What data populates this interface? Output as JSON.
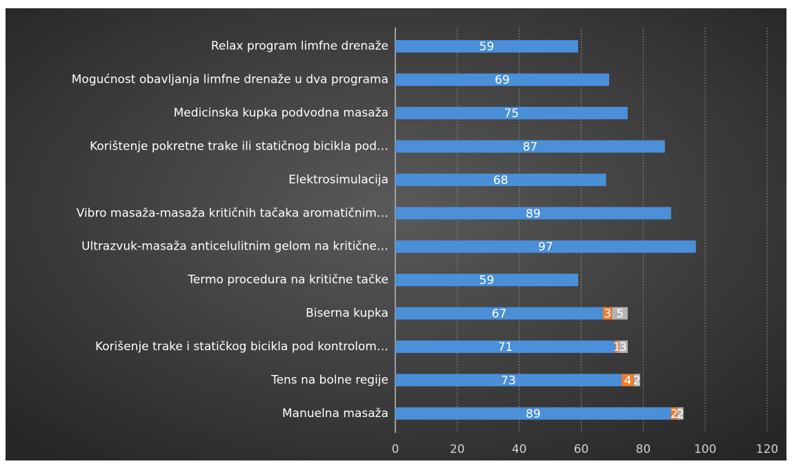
{
  "chart_data": {
    "type": "stacked_barh",
    "categories": [
      "Relax program limfne drenaže",
      "Mogućnost obavljanja limfne drenaže u dva programa",
      "Medicinska kupka podvodna masaža",
      "Korištenje pokretne trake ili statičnog bicikla pod…",
      "Elektrosimulacija",
      "Vibro masaža-masaža kritičnih tačaka aromatičnim…",
      "Ultrazvuk-masaža anticelulitnim gelom na kritične…",
      "Termo procedura na kritične tačke",
      "Biserna kupka",
      "Korišenje trake i statičkog bicikla pod kontrolom…",
      "Tens na bolne regije",
      "Manuelna masaža"
    ],
    "series": [
      {
        "color": "#4a8fd8",
        "values": [
          59,
          69,
          75,
          87,
          68,
          89,
          97,
          59,
          67,
          71,
          73,
          89
        ]
      },
      {
        "color": "#ed7d31",
        "values": [
          null,
          null,
          null,
          null,
          null,
          null,
          null,
          null,
          3,
          1,
          4,
          2
        ]
      },
      {
        "color": "#b4b4b4",
        "values": [
          null,
          null,
          null,
          null,
          null,
          null,
          null,
          null,
          5,
          3,
          2,
          2
        ]
      }
    ],
    "xlim": [
      0,
      120
    ],
    "xticks": [
      0,
      20,
      40,
      60,
      80,
      100,
      120
    ],
    "grid": true
  }
}
